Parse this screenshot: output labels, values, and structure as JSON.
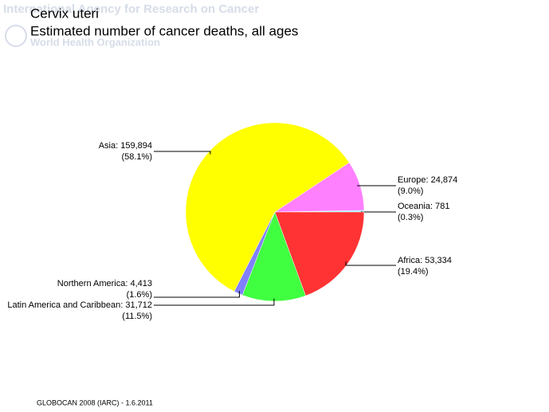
{
  "watermark": {
    "line1": "International Agency for Research on Cancer",
    "line2": "World Health Organization"
  },
  "chart_data": {
    "type": "pie",
    "title": "Cervix uteri",
    "subtitle": "Estimated number of cancer deaths, all ages",
    "values": [
      781,
      24874,
      159894,
      4413,
      31712,
      53334
    ],
    "value_labels": [
      "Oceania: 781",
      "Europe: 24,874",
      "Asia: 159,894",
      "Northern America: 4,413",
      "Latin America and Caribbean: 31,712",
      "Africa: 53,334"
    ],
    "percent_labels": [
      "(0.3%)",
      "(9.0%)",
      "(58.1%)",
      "(1.6%)",
      "(11.5%)",
      "(19.4%)"
    ],
    "colors": [
      "#80ffff",
      "#ff80ff",
      "#ffff00",
      "#8080ff",
      "#40ff40",
      "#ff3333"
    ]
  },
  "footer": "GLOBOCAN 2008 (IARC) - 1.6.2011"
}
